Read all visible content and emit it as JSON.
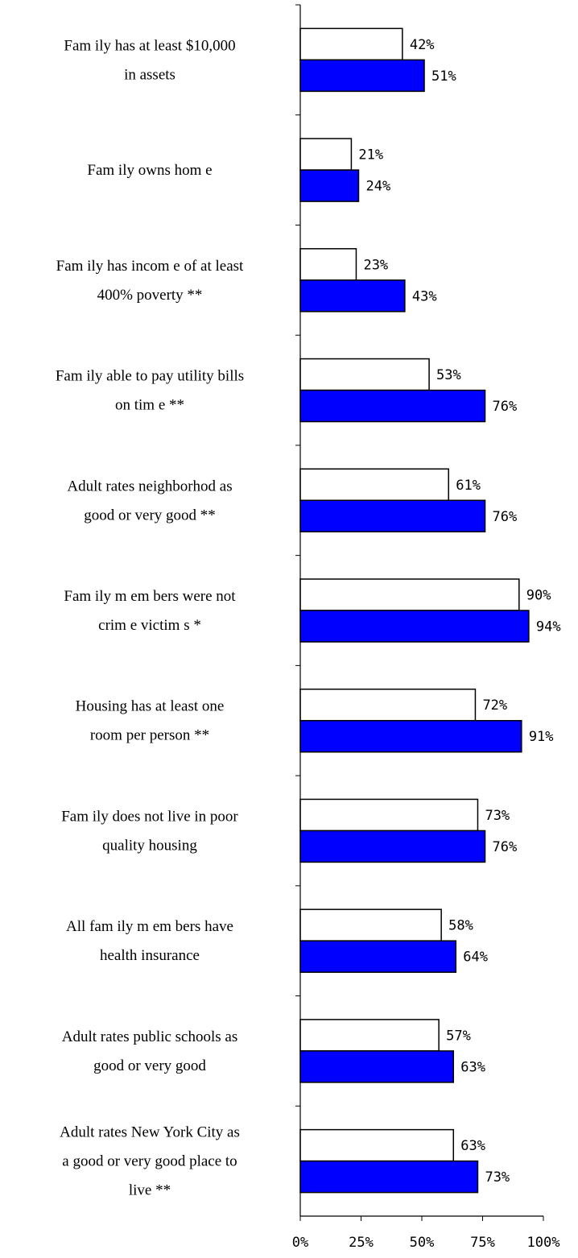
{
  "chart_data": {
    "type": "bar",
    "orientation": "horizontal",
    "categories": [
      [
        "Fam ily has at least $10,000",
        "in assets"
      ],
      [
        "Fam ily owns hom e"
      ],
      [
        "Fam ily has incom e of at least",
        "400%  poverty **"
      ],
      [
        "Fam ily able to pay utility bills",
        "on tim e **"
      ],
      [
        "Adult rates neighborhod as",
        "good or very good **"
      ],
      [
        "Fam ily m em bers were not",
        "crim e victim s *"
      ],
      [
        "Housing has at least one",
        "room per person **"
      ],
      [
        "Fam ily does not live in poor",
        "quality housing"
      ],
      [
        "All fam ily m em bers have",
        "health insurance"
      ],
      [
        "Adult rates public schools as",
        "good or very good"
      ],
      [
        "Adult rates New York City as",
        "a good or very good place to",
        "live **"
      ]
    ],
    "series": [
      {
        "color": "#ffffff",
        "values": [
          42,
          21,
          23,
          53,
          61,
          90,
          72,
          73,
          58,
          57,
          63
        ],
        "labels": [
          "42%",
          "21%",
          "23%",
          "53%",
          "61%",
          "90%",
          "72%",
          "73%",
          "58%",
          "57%",
          "63%"
        ]
      },
      {
        "color": "#0000ff",
        "values": [
          51,
          24,
          43,
          76,
          76,
          94,
          91,
          76,
          64,
          63,
          73
        ],
        "labels": [
          "51%",
          "24%",
          "43%",
          "76%",
          "76%",
          "94%",
          "91%",
          "76%",
          "64%",
          "63%",
          "73%"
        ]
      }
    ],
    "xlim": [
      0,
      100
    ],
    "xticks": [
      "0%",
      "25%",
      "50%",
      "75%",
      "100%"
    ],
    "grid": false,
    "legend": "none"
  }
}
